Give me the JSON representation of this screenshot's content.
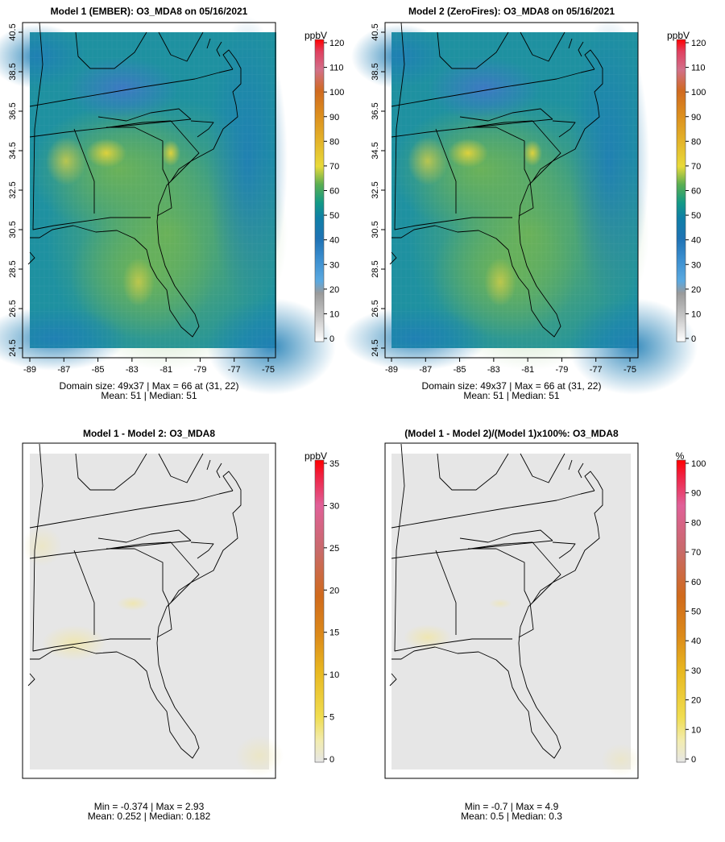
{
  "chart_data": [
    {
      "type": "heatmap",
      "title": "Model 1 (EMBER): O3_MDA8 on 05/16/2021",
      "x_ticks": [
        "-89",
        "-87",
        "-85",
        "-83",
        "-81",
        "-79",
        "-77",
        "-75"
      ],
      "y_ticks": [
        "24.5",
        "26.5",
        "28.5",
        "30.5",
        "32.5",
        "34.5",
        "36.5",
        "38.5",
        "40.5"
      ],
      "xlim": [
        -89,
        -75
      ],
      "ylim": [
        24.5,
        40.5
      ],
      "colorbar": {
        "unit": "ppbV",
        "ticks": [
          "0",
          "10",
          "20",
          "30",
          "40",
          "50",
          "60",
          "70",
          "80",
          "90",
          "100",
          "110",
          "120"
        ],
        "range": [
          0,
          120
        ]
      },
      "stats": [
        "Domain size: 49x37 | Max = 66 at (31, 22)",
        "Mean: 51 |  Median: 51"
      ],
      "grid_size": [
        49,
        37
      ],
      "max": 66,
      "mean": 51,
      "median": 51
    },
    {
      "type": "heatmap",
      "title": "Model 2 (ZeroFires): O3_MDA8 on 05/16/2021",
      "x_ticks": [
        "-89",
        "-87",
        "-85",
        "-83",
        "-81",
        "-79",
        "-77",
        "-75"
      ],
      "y_ticks": [
        "24.5",
        "26.5",
        "28.5",
        "30.5",
        "32.5",
        "34.5",
        "36.5",
        "38.5",
        "40.5"
      ],
      "xlim": [
        -89,
        -75
      ],
      "ylim": [
        24.5,
        40.5
      ],
      "colorbar": {
        "unit": "ppbV",
        "ticks": [
          "0",
          "10",
          "20",
          "30",
          "40",
          "50",
          "60",
          "70",
          "80",
          "90",
          "100",
          "110",
          "120"
        ],
        "range": [
          0,
          120
        ]
      },
      "stats": [
        "Domain size: 49x37 | Max = 66 at (31, 22)",
        "Mean: 51 |  Median: 51"
      ],
      "grid_size": [
        49,
        37
      ],
      "max": 66,
      "mean": 51,
      "median": 51
    },
    {
      "type": "heatmap",
      "title": "Model 1 - Model 2: O3_MDA8",
      "colorbar": {
        "unit": "ppbV",
        "ticks": [
          "0",
          "5",
          "10",
          "15",
          "20",
          "25",
          "30",
          "35"
        ],
        "range": [
          0,
          35
        ]
      },
      "stats": [
        "Min = -0.374 | Max = 2.93",
        "Mean: 0.252 |  Median: 0.182"
      ],
      "min": -0.374,
      "max": 2.93,
      "mean": 0.252,
      "median": 0.182
    },
    {
      "type": "heatmap",
      "title": "(Model 1 - Model 2)/(Model 1)x100%: O3_MDA8",
      "colorbar": {
        "unit": "%",
        "ticks": [
          "0",
          "10",
          "20",
          "30",
          "40",
          "50",
          "60",
          "70",
          "80",
          "90",
          "100"
        ],
        "range": [
          0,
          100
        ]
      },
      "stats": [
        "Min = -0.7 | Max = 4.9",
        "Mean: 0.5 |  Median: 0.3"
      ],
      "min": -0.7,
      "max": 4.9,
      "mean": 0.5,
      "median": 0.3
    }
  ]
}
